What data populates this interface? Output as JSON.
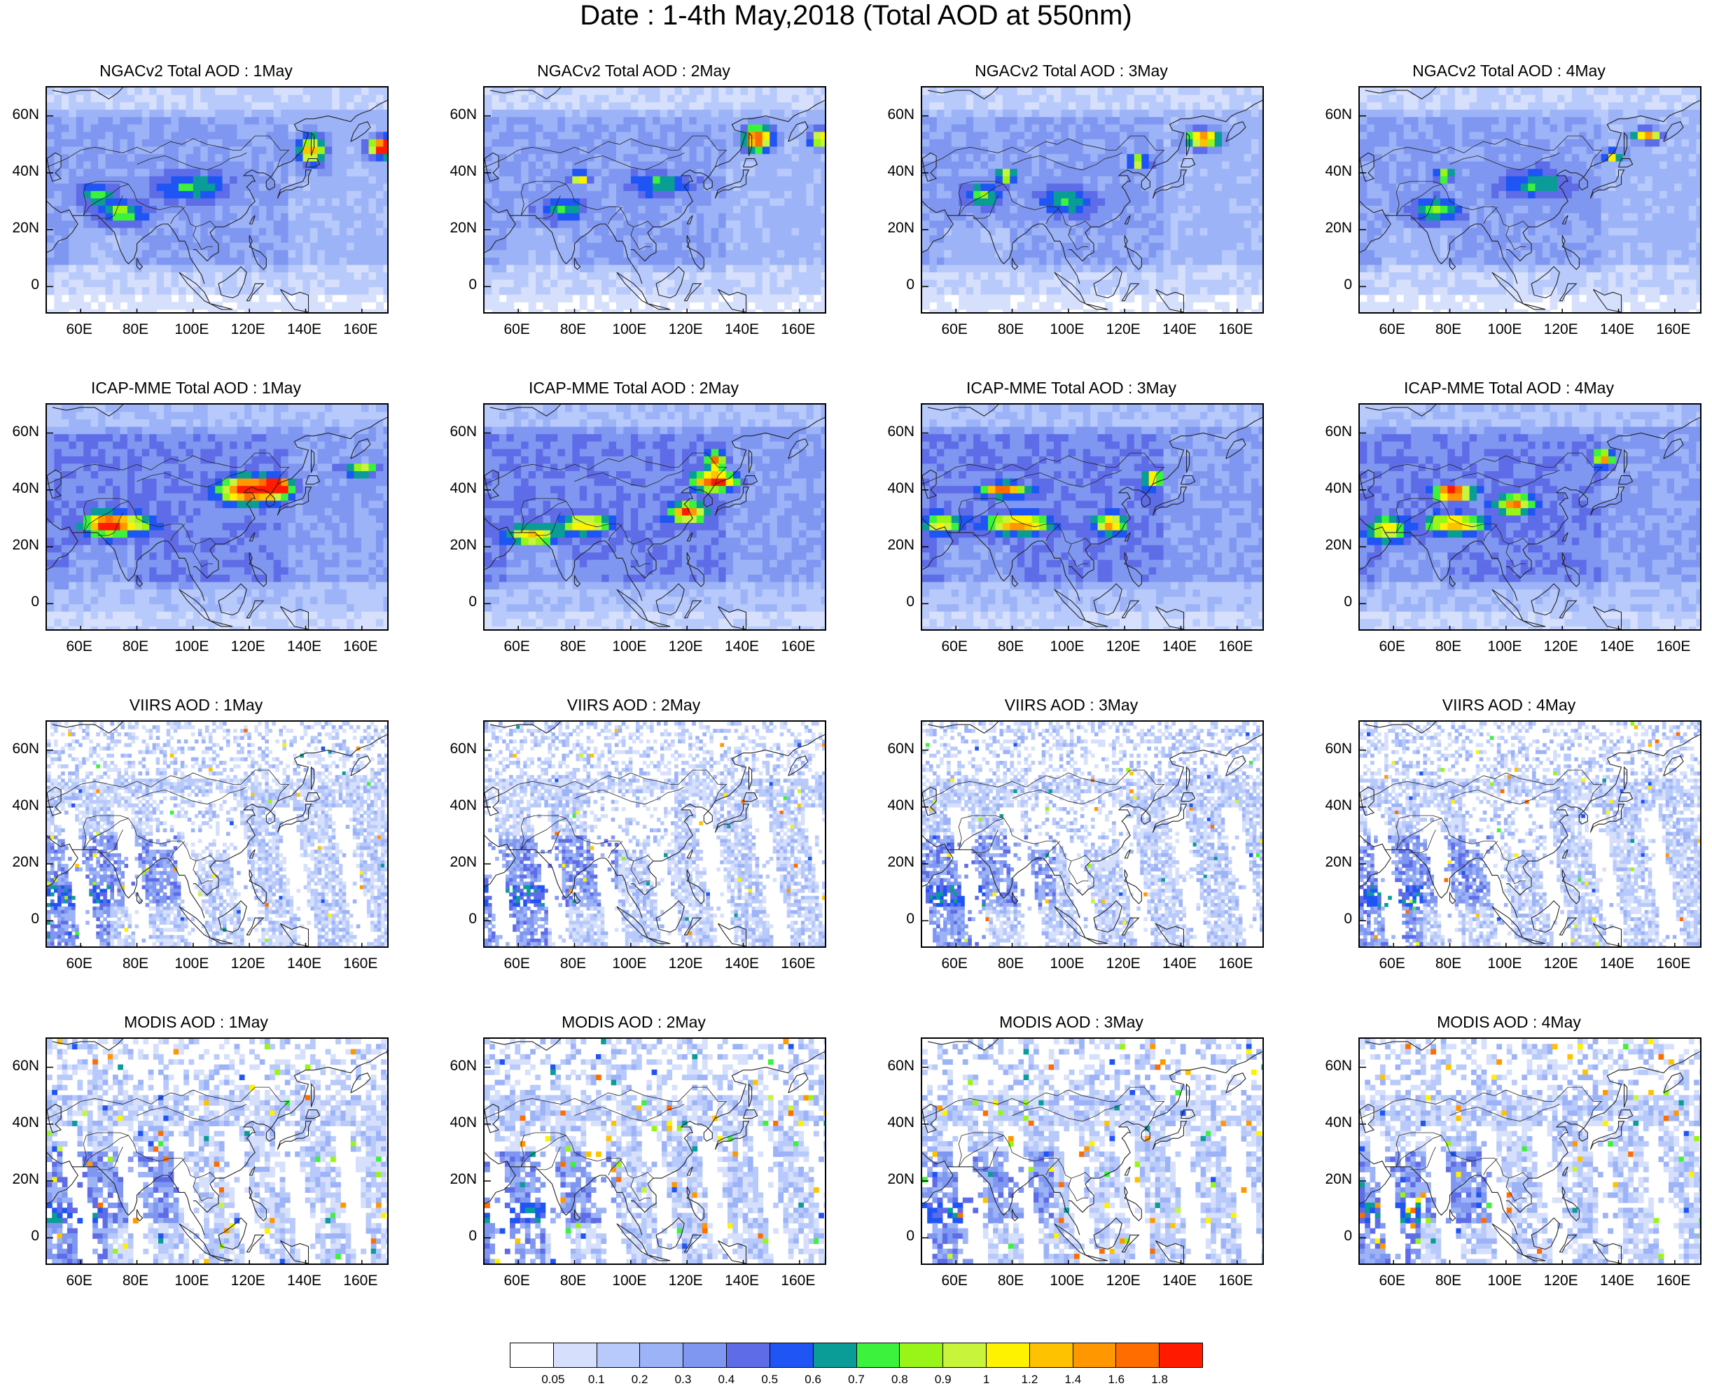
{
  "title": "Date : 1-4th May,2018 (Total AOD at 550nm)",
  "rows": [
    {
      "product": "NGACv2",
      "style": "smooth",
      "titles": [
        "NGACv2 Total AOD : 1May",
        "NGACv2 Total AOD : 2May",
        "NGACv2 Total AOD : 3May",
        "NGACv2 Total AOD : 4May"
      ]
    },
    {
      "product": "ICAP-MME",
      "style": "smooth",
      "titles": [
        "ICAP-MME Total AOD : 1May",
        "ICAP-MME Total AOD : 2May",
        "ICAP-MME Total AOD : 3May",
        "ICAP-MME Total AOD : 4May"
      ]
    },
    {
      "product": "VIIRS",
      "style": "swath",
      "titles": [
        "VIIRS AOD : 1May",
        "VIIRS AOD : 2May",
        "VIIRS AOD : 3May",
        "VIIRS AOD : 4May"
      ]
    },
    {
      "product": "MODIS",
      "style": "swath",
      "titles": [
        "MODIS AOD : 1May",
        "MODIS AOD : 2May",
        "MODIS AOD : 3May",
        "MODIS AOD : 4May"
      ]
    }
  ],
  "lat_ticks": [
    "60N",
    "40N",
    "20N",
    "0"
  ],
  "lon_ticks": [
    "60E",
    "80E",
    "100E",
    "120E",
    "140E",
    "160E"
  ],
  "colorbar": {
    "labels": [
      "0.05",
      "0.1",
      "0.2",
      "0.3",
      "0.4",
      "0.5",
      "0.6",
      "0.7",
      "0.8",
      "0.9",
      "1",
      "1.2",
      "1.4",
      "1.6",
      "1.8"
    ],
    "colors": [
      "#ffffff",
      "#d6e0fd",
      "#b8cafb",
      "#9db3f7",
      "#7f97f1",
      "#5f6ce8",
      "#1f55f5",
      "#0a9c96",
      "#3cf23c",
      "#99f518",
      "#c8f53c",
      "#fff200",
      "#ffc200",
      "#ff9800",
      "#ff6d00",
      "#ff1a00"
    ]
  }
}
